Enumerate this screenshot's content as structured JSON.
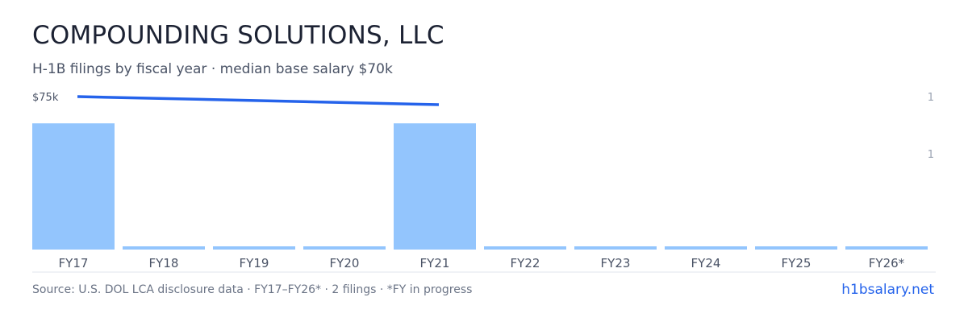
{
  "header": {
    "title": "COMPOUNDING SOLUTIONS, LLC",
    "subtitle": "H-1B filings by fiscal year · median base salary $70k"
  },
  "footer": {
    "source": "Source: U.S. DOL LCA disclosure data · FY17–FY26* · 2 filings · *FY in progress",
    "brand": "h1bsalary.net"
  },
  "colors": {
    "bar": "#93c5fd",
    "line": "#2563eb",
    "axis_text": "#4a5366",
    "right_tick": "#9aa3b2",
    "baseline": "#e2e6ec"
  },
  "chart_data": {
    "type": "bar",
    "categories": [
      "FY17",
      "FY18",
      "FY19",
      "FY20",
      "FY21",
      "FY22",
      "FY23",
      "FY24",
      "FY25",
      "FY26*"
    ],
    "series": [
      {
        "values": [
          1,
          0,
          0,
          0,
          1,
          0,
          0,
          0,
          0,
          0
        ]
      }
    ],
    "line_series": {
      "x": [
        "FY17",
        "FY21"
      ],
      "values": [
        75,
        70
      ],
      "unit": "k"
    },
    "left_tick_labels": [
      "$75k"
    ],
    "right_tick_labels": [
      "1",
      "1"
    ],
    "ylim_bars": [
      0,
      1.18
    ],
    "ylim_salary": [
      0,
      75
    ],
    "grid": false,
    "legend": "none"
  }
}
